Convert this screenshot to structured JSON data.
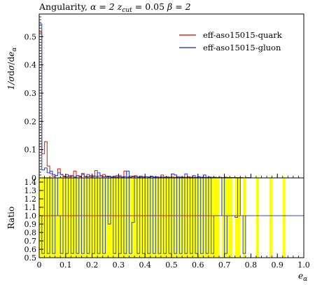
{
  "chart_data": {
    "type": "histogram-with-ratio",
    "title": "Angularity, α = 2 z_cut = 0.05 β = 2",
    "title_parts": {
      "prefix": "Angularity, ",
      "alpha": "α = 2 ",
      "zcut_sym": "z",
      "zcut_sub": "cut",
      "zcut_val": " = 0.05 ",
      "beta": "β = 2"
    },
    "xlabel": "e_α",
    "xlabel_parts": {
      "main": "e",
      "sub": "α"
    },
    "ylabel": "1/σ dσ/de_α",
    "ylabel_parts": {
      "a": "1/",
      "b": "σ",
      "c": "d",
      "d": "σ",
      "e": "/d",
      "f": "e",
      "g": "α"
    },
    "ratio_ylabel": "Ratio",
    "xlim": [
      0,
      1.0
    ],
    "ylim": [
      0,
      0.58
    ],
    "ratio_ylim": [
      0.5,
      1.45
    ],
    "x_ticks": [
      "0",
      "0.1",
      "0.2",
      "0.3",
      "0.4",
      "0.5",
      "0.6",
      "0.7",
      "0.8",
      "0.9",
      "1.0"
    ],
    "y_ticks": [
      "0.1",
      "0.2",
      "0.3",
      "0.4",
      "0.5"
    ],
    "ratio_ticks": [
      "0.5",
      "0.6",
      "0.7",
      "0.8",
      "0.9",
      "1.0",
      "1.1",
      "1.2",
      "1.3",
      "1.4"
    ],
    "legend_position": "top-right",
    "bin_width": 0.01,
    "series": [
      {
        "name": "eff-aso15015-quark",
        "color": "#e8281e",
        "values": [
          0.515,
          0.085,
          0.128,
          0.042,
          0.015,
          0.005,
          0.008,
          0.032,
          0.012,
          0.004,
          0.012,
          0.004,
          0.008,
          0.024,
          0.008,
          0.004,
          0.016,
          0.004,
          0.012,
          0.004,
          0.008,
          0.026,
          0.006,
          0.008,
          0.012,
          0.004,
          0.006,
          0.004,
          0.006,
          0.003,
          0.008,
          0.004,
          0.024,
          0.003,
          0.006,
          0.004,
          0.008,
          0.003,
          0.006,
          0.004,
          0.004,
          0.003,
          0.006,
          0.003,
          0.004,
          0.002,
          0.01,
          0.003,
          0.004,
          0.002,
          0.003,
          0.002,
          0.004,
          0.002,
          0.003,
          0.002,
          0.004,
          0.002,
          0.002,
          0.001,
          0.003,
          0.002,
          0.002,
          0.001,
          0.002,
          0.001,
          0.002,
          0.001,
          0.001,
          0.001,
          0.002,
          0.001,
          0.001,
          0.001,
          0.001,
          0.001,
          0.001,
          0.0,
          0.001,
          0.001,
          0.0,
          0.0,
          0.0,
          0.0,
          0.0,
          0.0,
          0.0,
          0.0,
          0.0,
          0.0,
          0.0,
          0.0,
          0.0,
          0.0,
          0.0,
          0.0,
          0.0,
          0.0,
          0.0,
          0.0
        ]
      },
      {
        "name": "eff-aso15015-gluon",
        "color": "#2b4bcf",
        "values": [
          0.545,
          0.028,
          0.035,
          0.018,
          0.024,
          0.012,
          0.008,
          0.018,
          0.012,
          0.006,
          0.004,
          0.008,
          0.006,
          0.003,
          0.008,
          0.006,
          0.012,
          0.005,
          0.004,
          0.008,
          0.004,
          0.005,
          0.018,
          0.006,
          0.004,
          0.006,
          0.004,
          0.003,
          0.003,
          0.008,
          0.004,
          0.003,
          0.004,
          0.024,
          0.002,
          0.006,
          0.004,
          0.004,
          0.003,
          0.003,
          0.004,
          0.003,
          0.004,
          0.003,
          0.003,
          0.002,
          0.003,
          0.002,
          0.003,
          0.002,
          0.014,
          0.01,
          0.003,
          0.003,
          0.002,
          0.014,
          0.002,
          0.002,
          0.008,
          0.002,
          0.004,
          0.002,
          0.01,
          0.002,
          0.003,
          0.002,
          0.002,
          0.001,
          0.002,
          0.001,
          0.002,
          0.001,
          0.001,
          0.001,
          0.001,
          0.0,
          0.001,
          0.0,
          0.0,
          0.0,
          0.0,
          0.0,
          0.0,
          0.0,
          0.0,
          0.0,
          0.0,
          0.0,
          0.0,
          0.0,
          0.0,
          0.0,
          0.0,
          0.0,
          0.0,
          0.0,
          0.0,
          0.0,
          0.0,
          0.0
        ]
      }
    ],
    "ratio": {
      "band_color": "#ffff00",
      "reference_line": 1.0,
      "band_values": [
        1.45,
        1.45,
        1.45,
        1.45,
        1.45,
        1.45,
        1.45,
        1.45,
        1.45,
        1.45,
        1.45,
        1.45,
        1.45,
        1.45,
        1.45,
        1.45,
        1.45,
        1.45,
        1.45,
        1.45,
        1.45,
        1.45,
        1.45,
        1.45,
        1.45,
        1.45,
        1.45,
        1.45,
        1.45,
        1.45,
        1.45,
        1.45,
        1.45,
        1.45,
        1.45,
        1.45,
        1.45,
        1.45,
        1.45,
        1.45,
        1.45,
        1.45,
        1.45,
        1.45,
        1.45,
        1.45,
        1.45,
        1.45,
        1.45,
        1.45,
        1.45,
        1.45,
        1.45,
        1.45,
        1.45,
        1.45,
        1.45,
        1.45,
        1.45,
        1.45,
        1.45,
        1.45,
        1.45,
        1.45,
        1.45,
        1.45,
        1.45,
        1.45,
        1.45,
        1.45,
        1.45,
        1.45,
        1.45,
        1.45,
        1.45,
        1.45,
        1.45,
        1.45,
        1.45,
        1.45,
        1.45,
        1.45,
        1.45,
        1.45,
        1.45,
        1.45,
        1.45,
        1.45,
        1.45,
        1.45,
        1.45,
        1.45,
        1.45,
        1.45,
        1.45,
        1.45,
        1.45,
        1.45,
        1.45,
        1.45
      ],
      "band_mask": [
        1,
        1,
        1,
        1,
        1,
        1,
        1,
        1,
        1,
        1,
        1,
        1,
        1,
        1,
        1,
        1,
        1,
        1,
        1,
        1,
        1,
        1,
        1,
        1,
        1,
        1,
        1,
        1,
        1,
        1,
        1,
        1,
        1,
        1,
        1,
        1,
        1,
        1,
        1,
        1,
        1,
        1,
        1,
        1,
        1,
        1,
        1,
        1,
        1,
        1,
        1,
        1,
        1,
        1,
        1,
        1,
        1,
        1,
        1,
        1,
        1,
        1,
        1,
        1,
        1,
        1,
        1,
        1,
        0,
        1,
        1,
        1,
        1,
        0,
        1,
        1,
        0,
        1,
        0,
        0,
        0,
        0,
        1,
        0,
        0,
        0,
        0,
        1,
        0,
        0,
        0,
        0,
        1,
        0,
        0,
        0,
        0,
        0,
        0,
        0
      ],
      "gluon_ratio": [
        1.0,
        0.55,
        1.45,
        0.55,
        1.45,
        0.55,
        1.45,
        1.0,
        0.55,
        1.45,
        0.55,
        1.45,
        0.55,
        1.45,
        0.55,
        1.45,
        0.55,
        1.45,
        0.55,
        1.45,
        0.55,
        1.45,
        0.55,
        1.45,
        0.55,
        1.45,
        0.9,
        1.45,
        0.55,
        1.45,
        0.55,
        1.45,
        0.55,
        1.45,
        0.55,
        0.92,
        1.45,
        0.55,
        1.45,
        0.55,
        1.45,
        0.55,
        1.45,
        0.55,
        1.45,
        0.55,
        1.45,
        0.55,
        1.45,
        0.55,
        1.45,
        0.55,
        1.45,
        0.55,
        1.45,
        0.55,
        1.45,
        0.55,
        1.45,
        0.55,
        1.45,
        0.55,
        1.45,
        0.55,
        1.45,
        0.55,
        1.0,
        1.0,
        1.0,
        1.45,
        0.55,
        1.0,
        1.0,
        1.0,
        0.98,
        1.45,
        1.0,
        0.55,
        1.0,
        1.0,
        1.0,
        1.0,
        1.0,
        1.0,
        1.0,
        1.0,
        1.0,
        1.0,
        1.0,
        1.0,
        1.0,
        1.0,
        1.0,
        1.0,
        1.0,
        1.0,
        1.0,
        1.0,
        1.0,
        1.0
      ]
    }
  }
}
